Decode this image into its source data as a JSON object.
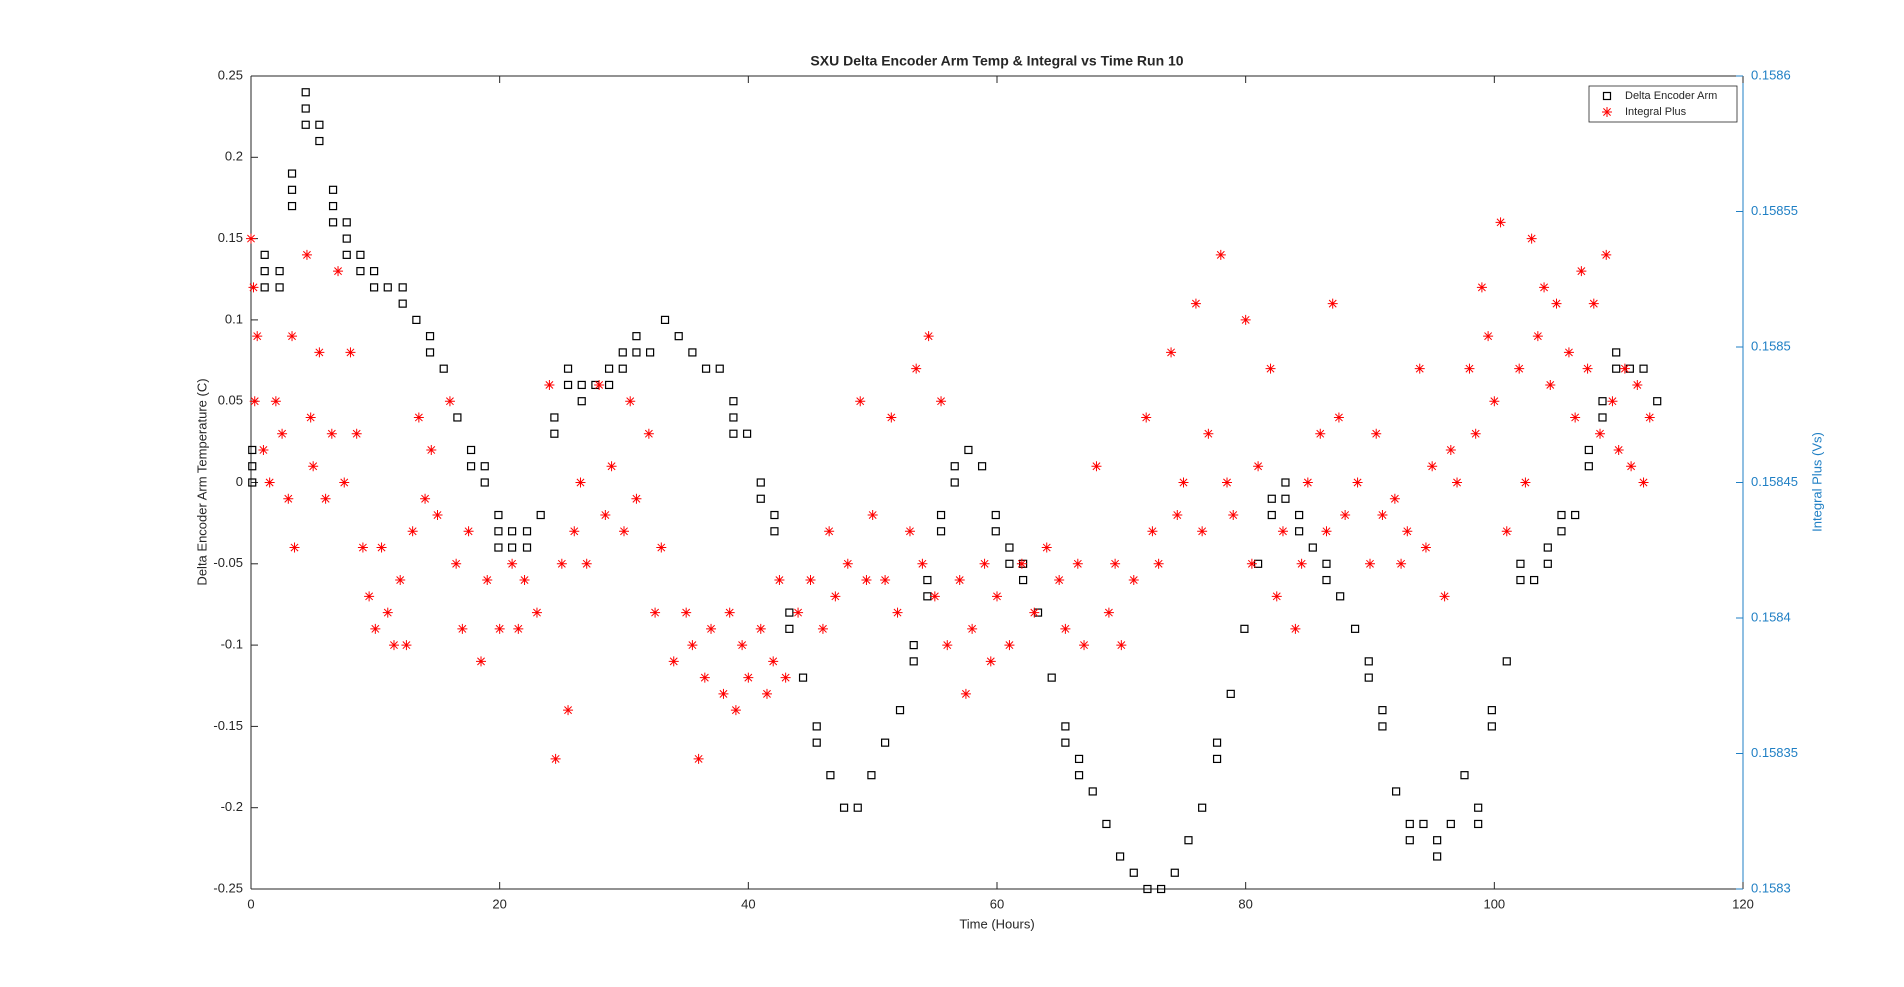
{
  "chart_data": {
    "type": "scatter",
    "title": "SXU Delta Encoder Arm Temp & Integral vs Time Run 10",
    "x_label": "Time (Hours)",
    "y_label": "Delta Encoder Arm Temperature (C)",
    "y2_label": "Integral Plus (Vs)",
    "xlim": [
      0,
      120
    ],
    "xticks": [
      0,
      20,
      40,
      60,
      80,
      100,
      120
    ],
    "ylim": [
      -0.25,
      0.25
    ],
    "yticks": [
      -0.25,
      -0.2,
      -0.15,
      -0.1,
      -0.05,
      0,
      0.05,
      0.1,
      0.15,
      0.2,
      0.25
    ],
    "y2lim": [
      0.1583,
      0.1586
    ],
    "y2ticks": [
      0.1583,
      0.15835,
      0.1584,
      0.15845,
      0.1585,
      0.15855,
      0.1586
    ],
    "y2_color": "#1f7fc4",
    "grid": false,
    "legend": "northeast",
    "series": [
      {
        "name": "Delta Encoder Arm",
        "color": "#000000",
        "marker": "square",
        "x": [
          0.1,
          0.1,
          0.1,
          1.1,
          1.1,
          1.1,
          2.3,
          2.3,
          3.3,
          3.3,
          3.3,
          4.4,
          4.4,
          4.4,
          5.5,
          5.5,
          6.6,
          6.6,
          6.6,
          7.7,
          7.7,
          7.7,
          8.8,
          8.8,
          9.9,
          9.9,
          11,
          12.2,
          12.2,
          13.3,
          14.4,
          14.4,
          15.5,
          16.6,
          17.7,
          17.7,
          18.8,
          18.8,
          19.9,
          19.9,
          19.9,
          21,
          21,
          22.2,
          22.2,
          23.3,
          24.4,
          24.4,
          25.5,
          25.5,
          26.6,
          26.6,
          27.7,
          28.8,
          28.8,
          29.9,
          29.9,
          31,
          31,
          32.1,
          33.3,
          34.4,
          35.5,
          36.6,
          37.7,
          38.8,
          38.8,
          38.8,
          39.9,
          41,
          41,
          42.1,
          42.1,
          43.3,
          43.3,
          44.4,
          45.5,
          45.5,
          46.6,
          47.7,
          48.8,
          49.9,
          51,
          52.2,
          53.3,
          53.3,
          54.4,
          54.4,
          55.5,
          55.5,
          56.6,
          56.6,
          57.7,
          58.8,
          59.9,
          59.9,
          61,
          61,
          62.1,
          62.1,
          63.3,
          64.4,
          65.5,
          65.5,
          66.6,
          66.6,
          67.7,
          68.8,
          69.9,
          71,
          72.1,
          73.2,
          74.3,
          75.4,
          76.5,
          77.7,
          77.7,
          78.8,
          79.9,
          81,
          82.1,
          82.1,
          83.2,
          83.2,
          84.3,
          84.3,
          85.4,
          86.5,
          86.5,
          87.6,
          88.8,
          89.9,
          89.9,
          91,
          91,
          92.1,
          93.2,
          93.2,
          94.3,
          95.4,
          95.4,
          96.5,
          97.6,
          98.7,
          98.7,
          99.8,
          99.8,
          101,
          102.1,
          102.1,
          103.2,
          104.3,
          104.3,
          105.4,
          105.4,
          106.5,
          107.6,
          107.6,
          108.7,
          108.7,
          109.8,
          109.8,
          110.9,
          112,
          113.1
        ],
        "values": [
          0.02,
          0.01,
          0,
          0.14,
          0.13,
          0.12,
          0.13,
          0.12,
          0.19,
          0.18,
          0.17,
          0.24,
          0.23,
          0.22,
          0.22,
          0.21,
          0.18,
          0.17,
          0.16,
          0.16,
          0.15,
          0.14,
          0.14,
          0.13,
          0.13,
          0.12,
          0.12,
          0.12,
          0.11,
          0.1,
          0.09,
          0.08,
          0.07,
          0.04,
          0.02,
          0.01,
          0.01,
          0,
          -0.02,
          -0.03,
          -0.04,
          -0.03,
          -0.04,
          -0.03,
          -0.04,
          -0.02,
          0.04,
          0.03,
          0.07,
          0.06,
          0.06,
          0.05,
          0.06,
          0.07,
          0.06,
          0.08,
          0.07,
          0.09,
          0.08,
          0.08,
          0.1,
          0.09,
          0.08,
          0.07,
          0.07,
          0.05,
          0.04,
          0.03,
          0.03,
          0,
          -0.01,
          -0.02,
          -0.03,
          -0.08,
          -0.09,
          -0.12,
          -0.15,
          -0.16,
          -0.18,
          -0.2,
          -0.2,
          -0.18,
          -0.16,
          -0.14,
          -0.1,
          -0.11,
          -0.06,
          -0.07,
          -0.03,
          -0.02,
          0,
          0.01,
          0.02,
          0.01,
          -0.02,
          -0.03,
          -0.04,
          -0.05,
          -0.05,
          -0.06,
          -0.08,
          -0.12,
          -0.15,
          -0.16,
          -0.17,
          -0.18,
          -0.19,
          -0.21,
          -0.23,
          -0.24,
          -0.25,
          -0.25,
          -0.24,
          -0.22,
          -0.2,
          -0.16,
          -0.17,
          -0.13,
          -0.09,
          -0.05,
          -0.01,
          -0.02,
          0,
          -0.01,
          -0.02,
          -0.03,
          -0.04,
          -0.05,
          -0.06,
          -0.07,
          -0.09,
          -0.11,
          -0.12,
          -0.14,
          -0.15,
          -0.19,
          -0.21,
          -0.22,
          -0.21,
          -0.22,
          -0.23,
          -0.21,
          -0.18,
          -0.2,
          -0.21,
          -0.14,
          -0.15,
          -0.11,
          -0.05,
          -0.06,
          -0.06,
          -0.04,
          -0.05,
          -0.02,
          -0.03,
          -0.02,
          0.02,
          0.01,
          0.05,
          0.04,
          0.08,
          0.07,
          0.07,
          0.07,
          0.05
        ]
      },
      {
        "name": "Integral Plus",
        "color": "#ff0000",
        "marker": "asterisk",
        "axis": "y2",
        "x": [
          0,
          0.2,
          0.3,
          0.5,
          1,
          1.5,
          2,
          2.5,
          3,
          3.3,
          3.5,
          4.5,
          4.8,
          5,
          5.5,
          6,
          6.5,
          7,
          7.5,
          8,
          8.5,
          9,
          9.5,
          10,
          10.5,
          11,
          11.5,
          12,
          12.5,
          13,
          13.5,
          14,
          14.5,
          15,
          16,
          16.5,
          17,
          17.5,
          18.5,
          19,
          20,
          21,
          21.5,
          22,
          23,
          24,
          24.5,
          25,
          25.5,
          26,
          26.5,
          27,
          28,
          28.5,
          29,
          30,
          30.5,
          31,
          32,
          32.5,
          33,
          34,
          35,
          35.5,
          36,
          36.5,
          37,
          38,
          38.5,
          39,
          39.5,
          40,
          41,
          41.5,
          42,
          42.5,
          43,
          44,
          45,
          46,
          46.5,
          47,
          48,
          49,
          49.5,
          50,
          51,
          51.5,
          52,
          53,
          53.5,
          54,
          54.5,
          55,
          55.5,
          56,
          57,
          57.5,
          58,
          59,
          59.5,
          60,
          61,
          62,
          63,
          64,
          65,
          65.5,
          66.5,
          67,
          68,
          69,
          69.5,
          70,
          71,
          72,
          72.5,
          73,
          74,
          74.5,
          75,
          76,
          76.5,
          77,
          78,
          78.5,
          79,
          80,
          80.5,
          81,
          82,
          82.5,
          83,
          84,
          84.5,
          85,
          86,
          86.5,
          87,
          87.5,
          88,
          89,
          90,
          90.5,
          91,
          92,
          92.5,
          93,
          94,
          94.5,
          95,
          96,
          96.5,
          97,
          98,
          98.5,
          99,
          99.5,
          100,
          100.5,
          101,
          102,
          102.5,
          103,
          103.5,
          104,
          104.5,
          105,
          106,
          106.5,
          107,
          107.5,
          108,
          108.5,
          109,
          109.5,
          110,
          110.5,
          111,
          111.5,
          112,
          112.5
        ],
        "values": [
          0.15854,
          0.158522,
          0.15848,
          0.158504,
          0.158462,
          0.15845,
          0.15848,
          0.158468,
          0.158444,
          0.158504,
          0.158426,
          0.158534,
          0.158474,
          0.158456,
          0.158498,
          0.158444,
          0.158468,
          0.158528,
          0.15845,
          0.158498,
          0.158468,
          0.158426,
          0.158408,
          0.158396,
          0.158426,
          0.158402,
          0.15839,
          0.158414,
          0.15839,
          0.158432,
          0.158474,
          0.158444,
          0.158462,
          0.158438,
          0.15848,
          0.15842,
          0.158396,
          0.158432,
          0.158384,
          0.158414,
          0.158396,
          0.15842,
          0.158396,
          0.158414,
          0.158402,
          0.158486,
          0.158348,
          0.15842,
          0.158366,
          0.158432,
          0.15845,
          0.15842,
          0.158486,
          0.158438,
          0.158456,
          0.158432,
          0.15848,
          0.158444,
          0.158468,
          0.158402,
          0.158426,
          0.158384,
          0.158402,
          0.15839,
          0.158348,
          0.158378,
          0.158396,
          0.158372,
          0.158402,
          0.158366,
          0.15839,
          0.158378,
          0.158396,
          0.158372,
          0.158384,
          0.158414,
          0.158378,
          0.158402,
          0.158414,
          0.158396,
          0.158432,
          0.158408,
          0.15842,
          0.15848,
          0.158414,
          0.158438,
          0.158414,
          0.158474,
          0.158402,
          0.158432,
          0.158492,
          0.15842,
          0.158504,
          0.158408,
          0.15848,
          0.15839,
          0.158414,
          0.158372,
          0.158396,
          0.15842,
          0.158384,
          0.158408,
          0.15839,
          0.15842,
          0.158402,
          0.158426,
          0.158414,
          0.158396,
          0.15842,
          0.15839,
          0.158456,
          0.158402,
          0.15842,
          0.15839,
          0.158414,
          0.158474,
          0.158432,
          0.15842,
          0.158498,
          0.158438,
          0.15845,
          0.158516,
          0.158432,
          0.158468,
          0.158534,
          0.15845,
          0.158438,
          0.15851,
          0.15842,
          0.158456,
          0.158492,
          0.158408,
          0.158432,
          0.158396,
          0.15842,
          0.15845,
          0.158468,
          0.158432,
          0.158516,
          0.158474,
          0.158438,
          0.15845,
          0.15842,
          0.158468,
          0.158438,
          0.158444,
          0.15842,
          0.158432,
          0.158492,
          0.158426,
          0.158456,
          0.158408,
          0.158462,
          0.15845,
          0.158492,
          0.158468,
          0.158522,
          0.158504,
          0.15848,
          0.158546,
          0.158432,
          0.158492,
          0.15845,
          0.15854,
          0.158504,
          0.158522,
          0.158486,
          0.158516,
          0.158498,
          0.158474,
          0.158528,
          0.158492,
          0.158516,
          0.158468,
          0.158534,
          0.15848,
          0.158462,
          0.158492,
          0.158456,
          0.158486,
          0.15845,
          0.158474
        ]
      }
    ]
  }
}
